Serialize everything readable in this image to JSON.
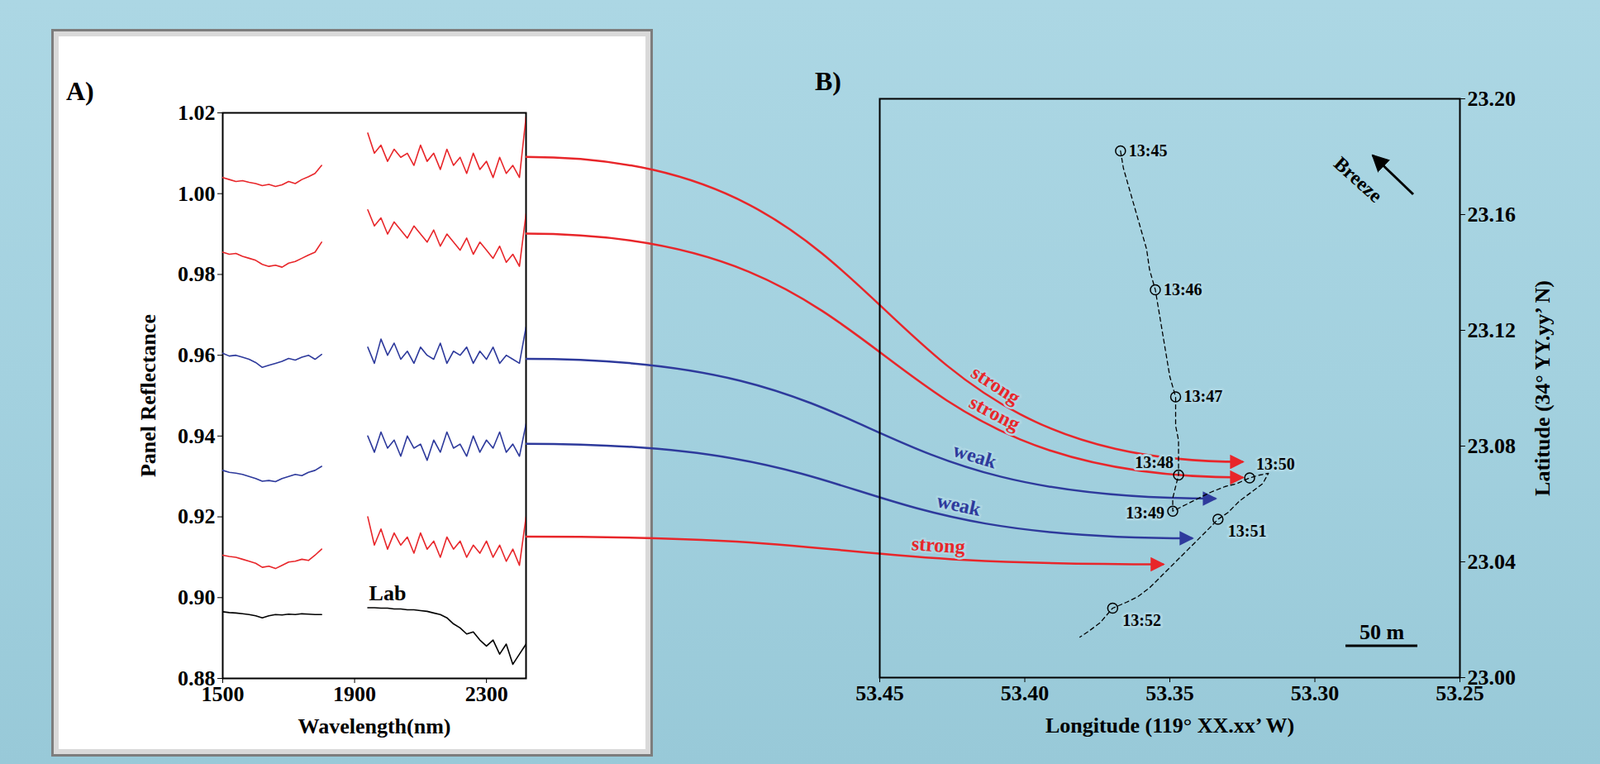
{
  "chart_data": [
    {
      "type": "line",
      "panel_label": "A)",
      "xlabel": "Wavelength(nm)",
      "ylabel": "Panel Reflectance",
      "x": [
        1500,
        1520,
        1540,
        1560,
        1580,
        1600,
        1620,
        1640,
        1660,
        1680,
        1700,
        1720,
        1740,
        1760,
        1780,
        1800,
        1820,
        1840,
        1860,
        1880,
        1900,
        1920,
        1940,
        1960,
        1980,
        2000,
        2020,
        2040,
        2060,
        2080,
        2100,
        2120,
        2140,
        2160,
        2180,
        2200,
        2220,
        2240,
        2260,
        2280,
        2300,
        2320,
        2340,
        2360,
        2380,
        2400,
        2420
      ],
      "xlim": [
        1500,
        2420
      ],
      "xticks": [
        1500,
        1900,
        2300
      ],
      "ylim": [
        0.88,
        1.02
      ],
      "yticks": [
        0.88,
        {
          "value": 0.9,
          "label": "0.90"
        },
        0.92,
        0.94,
        0.96,
        0.98,
        {
          "value": 1,
          "label": "1.00"
        },
        1.02
      ],
      "series": [
        {
          "color": "#e8262a",
          "values": [
            1.004,
            1.0035,
            1.003,
            1.0032,
            1.0028,
            1.0025,
            1.002,
            1.0023,
            1.0018,
            1.0022,
            1.003,
            1.0025,
            1.0035,
            1.0042,
            1.005,
            1.007,
            null,
            null,
            null,
            null,
            null,
            null,
            1.015,
            1.01,
            1.012,
            1.008,
            1.011,
            1.009,
            1.01,
            1.007,
            1.012,
            1.008,
            1.01,
            1.006,
            1.011,
            1.007,
            1.009,
            1.005,
            1.01,
            1.006,
            1.008,
            1.004,
            1.009,
            1.005,
            1.007,
            1.004,
            1.019
          ]
        },
        {
          "color": "#e8262a",
          "values": [
            0.9855,
            0.985,
            0.9852,
            0.9845,
            0.984,
            0.9835,
            0.9825,
            0.982,
            0.9823,
            0.9818,
            0.9828,
            0.9832,
            0.984,
            0.9848,
            0.9855,
            0.988,
            null,
            null,
            null,
            null,
            null,
            null,
            0.996,
            0.992,
            0.994,
            0.99,
            0.993,
            0.991,
            0.989,
            0.992,
            0.99,
            0.988,
            0.991,
            0.987,
            0.99,
            0.988,
            0.986,
            0.989,
            0.985,
            0.988,
            0.986,
            0.984,
            0.987,
            0.983,
            0.985,
            0.982,
            0.995
          ]
        },
        {
          "color": "#2e3a9c",
          "values": [
            0.9605,
            0.9598,
            0.96,
            0.9595,
            0.959,
            0.9582,
            0.957,
            0.9575,
            0.958,
            0.9585,
            0.9592,
            0.9588,
            0.9595,
            0.96,
            0.959,
            0.9602,
            null,
            null,
            null,
            null,
            null,
            null,
            0.962,
            0.958,
            0.964,
            0.96,
            0.963,
            0.959,
            0.961,
            0.958,
            0.962,
            0.96,
            0.959,
            0.963,
            0.958,
            0.961,
            0.96,
            0.962,
            0.958,
            0.961,
            0.959,
            0.962,
            0.958,
            0.96,
            0.959,
            0.958,
            0.967
          ]
        },
        {
          "color": "#2e3a9c",
          "values": [
            0.9315,
            0.931,
            0.9308,
            0.9305,
            0.93,
            0.9295,
            0.9288,
            0.929,
            0.9287,
            0.9295,
            0.93,
            0.9305,
            0.9302,
            0.931,
            0.9315,
            0.9325,
            null,
            null,
            null,
            null,
            null,
            null,
            0.94,
            0.936,
            0.941,
            0.937,
            0.939,
            0.935,
            0.94,
            0.937,
            0.938,
            0.934,
            0.939,
            0.936,
            0.941,
            0.937,
            0.938,
            0.935,
            0.94,
            0.936,
            0.939,
            0.937,
            0.941,
            0.936,
            0.938,
            0.935,
            0.943
          ]
        },
        {
          "color": "#e8262a",
          "values": [
            0.9105,
            0.9102,
            0.91,
            0.9095,
            0.909,
            0.9085,
            0.9075,
            0.9078,
            0.9072,
            0.908,
            0.9088,
            0.909,
            0.9095,
            0.9092,
            0.9105,
            0.912,
            null,
            null,
            null,
            null,
            null,
            null,
            0.92,
            0.913,
            0.917,
            0.912,
            0.916,
            0.913,
            0.915,
            0.911,
            0.916,
            0.912,
            0.914,
            0.91,
            0.915,
            0.912,
            0.914,
            0.91,
            0.913,
            0.911,
            0.914,
            0.91,
            0.913,
            0.909,
            0.912,
            0.908,
            0.92
          ]
        },
        {
          "name": "Lab",
          "color": "#000000",
          "values": [
            0.8965,
            0.8963,
            0.8962,
            0.896,
            0.8958,
            0.8955,
            0.895,
            0.8955,
            0.8958,
            0.8957,
            0.8959,
            0.8958,
            0.896,
            0.8959,
            0.8958,
            0.8958,
            null,
            null,
            null,
            null,
            null,
            null,
            0.8975,
            0.8975,
            0.8974,
            0.8974,
            0.8972,
            0.8972,
            0.897,
            0.897,
            0.8968,
            0.8966,
            0.8962,
            0.8958,
            0.895,
            0.8935,
            0.8925,
            0.891,
            0.8915,
            0.8895,
            0.888,
            0.8895,
            0.886,
            0.8885,
            0.8835,
            0.886,
            0.8885
          ]
        }
      ]
    },
    {
      "type": "scatter",
      "panel_label": "B)",
      "xlabel": "Longitude (119° XX.xx’ W)",
      "ylabel": "Latitude (34° YY.yy’ N)",
      "xlim": [
        53.45,
        53.25
      ],
      "xticks": [
        53.45,
        {
          "value": 53.4,
          "label": "53.40"
        },
        53.35,
        {
          "value": 53.3,
          "label": "53.30"
        },
        53.25
      ],
      "ylim": [
        23,
        23.2
      ],
      "yticks": [
        {
          "value": 23,
          "label": "23.00"
        },
        23.04,
        23.08,
        23.12,
        23.16,
        {
          "value": 23.2,
          "label": "23.20"
        }
      ],
      "track": {
        "marker": "plus",
        "line_style": "dashed",
        "color": "#000000",
        "lon": [
          53.367,
          53.366,
          53.364,
          53.362,
          53.36,
          53.358,
          53.357,
          53.355,
          53.354,
          53.353,
          53.352,
          53.351,
          53.35,
          53.348,
          53.348,
          53.348,
          53.347,
          53.347,
          53.347,
          53.348,
          53.349,
          53.349,
          53.344,
          53.34,
          53.336,
          53.331,
          53.327,
          53.3225,
          53.319,
          53.316,
          53.318,
          53.322,
          53.326,
          53.33,
          53.3334,
          53.337,
          53.341,
          53.345,
          53.349,
          53.353,
          53.357,
          53.361,
          53.365,
          53.3697,
          53.374,
          53.378,
          53.381
        ],
        "lat": [
          23.182,
          23.176,
          23.169,
          23.162,
          23.155,
          23.148,
          23.141,
          23.134,
          23.128,
          23.122,
          23.116,
          23.11,
          23.104,
          23.097,
          23.092,
          23.087,
          23.082,
          23.077,
          23.07,
          23.066,
          23.062,
          23.0575,
          23.06,
          23.062,
          23.064,
          23.066,
          23.067,
          23.069,
          23.07,
          23.0706,
          23.067,
          23.064,
          23.061,
          23.057,
          23.0547,
          23.051,
          23.047,
          23.043,
          23.039,
          23.035,
          23.031,
          23.028,
          23.026,
          23.024,
          23.019,
          23.016,
          23.014
        ]
      },
      "fixes": {
        "marker": "circle",
        "color": "#000000",
        "labels": [
          "13:45",
          "13:46",
          "13:47",
          "13:48",
          "13:49",
          "13:50",
          "13:51",
          "13:52"
        ],
        "lon": [
          53.367,
          53.355,
          53.348,
          53.347,
          53.349,
          53.3225,
          53.3334,
          53.3697
        ],
        "lat": [
          23.182,
          23.134,
          23.097,
          23.07,
          23.0575,
          23.069,
          23.0547,
          23.024
        ]
      },
      "links": [
        {
          "label": "strong",
          "color": "#e8262a",
          "from_value": 1.009,
          "to_lon": 53.3246,
          "to_lat": 23.0744
        },
        {
          "label": "strong",
          "color": "#e8262a",
          "from_value": 0.99,
          "to_lon": 53.3246,
          "to_lat": 23.069
        },
        {
          "label": "weak",
          "color": "#2e3a9c",
          "from_value": 0.959,
          "to_lon": 53.334,
          "to_lat": 23.0617
        },
        {
          "label": "weak",
          "color": "#2e3a9c",
          "from_value": 0.938,
          "to_lon": 53.342,
          "to_lat": 23.048
        },
        {
          "label": "strong",
          "color": "#e8262a",
          "from_value": 0.915,
          "to_lon": 53.352,
          "to_lat": 23.039
        }
      ],
      "wind_label": "Breeze",
      "scale_bar_label": "50 m"
    }
  ]
}
